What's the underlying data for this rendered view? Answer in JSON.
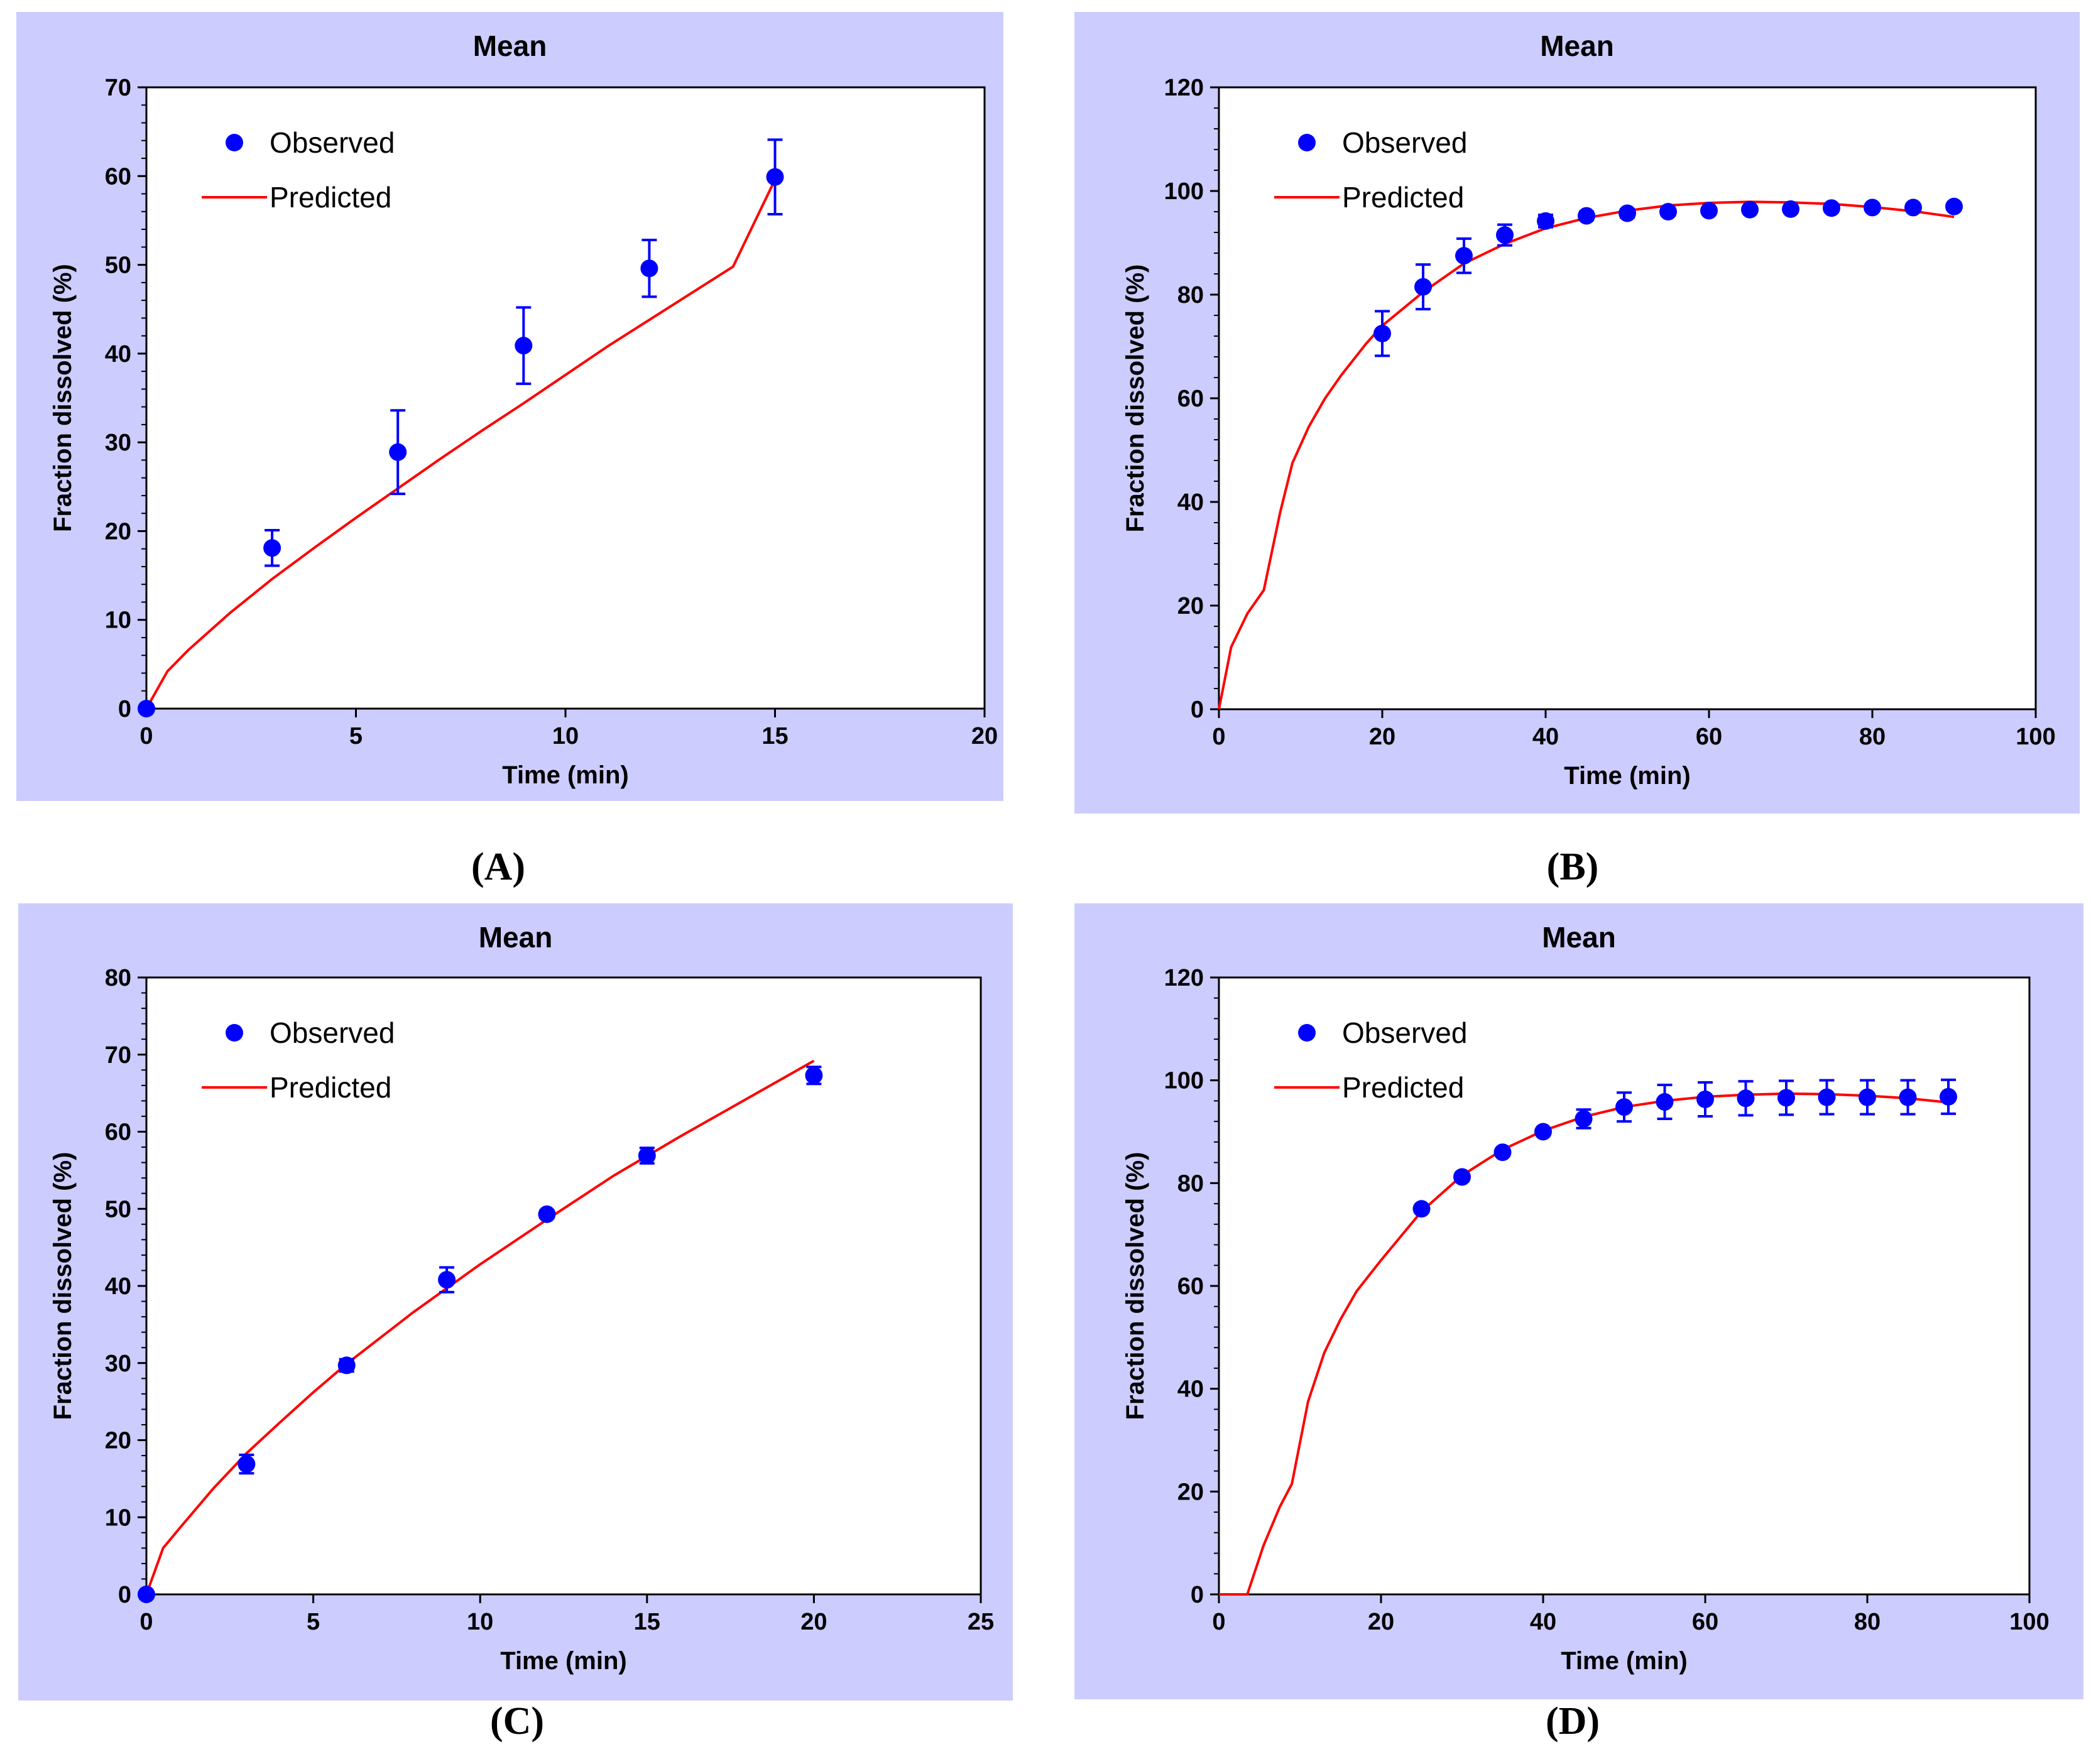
{
  "colors": {
    "panel_background": "#ccccff",
    "observed": "#0000ff",
    "predicted": "#ff0000"
  },
  "chart_data": [
    {
      "type": "scatter",
      "caption": "(A)",
      "title": "Mean",
      "xlabel": "Time (min)",
      "ylabel": "Fraction dissolved (%)",
      "xlim": [
        0,
        20
      ],
      "ylim": [
        0,
        70
      ],
      "xticks": [
        "0",
        "5",
        "10",
        "15",
        "20"
      ],
      "yticks": [
        "0",
        "10",
        "20",
        "30",
        "40",
        "50",
        "60",
        "70"
      ],
      "legend": {
        "placement": "top-left",
        "entries": [
          "Observed",
          "Predicted"
        ]
      },
      "series": [
        {
          "name": "Observed",
          "kind": "points",
          "x": [
            0,
            3,
            6,
            9,
            12,
            15
          ],
          "y": [
            0,
            18.1,
            28.9,
            40.9,
            49.6,
            59.9
          ],
          "err": [
            0,
            2.0,
            4.7,
            4.3,
            3.2,
            4.2
          ]
        },
        {
          "name": "Predicted",
          "kind": "line",
          "x": [
            0,
            0.5,
            1,
            2,
            3,
            4,
            5,
            6,
            7,
            8,
            9,
            10,
            11,
            12,
            13,
            14,
            15
          ],
          "y": [
            0,
            4.2,
            6.6,
            10.8,
            14.6,
            18.1,
            21.5,
            24.8,
            28.1,
            31.3,
            34.4,
            37.6,
            40.8,
            43.8,
            46.8,
            49.8,
            59.6
          ]
        }
      ]
    },
    {
      "type": "scatter",
      "caption": "(B)",
      "title": "Mean",
      "xlabel": "Time (min)",
      "ylabel": "Fraction dissolved (%)",
      "xlim": [
        0,
        100
      ],
      "ylim": [
        0,
        120
      ],
      "xticks": [
        "0",
        "20",
        "40",
        "60",
        "80",
        "100"
      ],
      "yticks": [
        "0",
        "20",
        "40",
        "60",
        "80",
        "100",
        "120"
      ],
      "legend": {
        "placement": "top-left",
        "entries": [
          "Observed",
          "Predicted"
        ]
      },
      "series": [
        {
          "name": "Observed",
          "kind": "points",
          "x": [
            20,
            25,
            30,
            35,
            40,
            45,
            50,
            55,
            60,
            65,
            70,
            75,
            80,
            85,
            90
          ],
          "y": [
            72.5,
            81.5,
            87.5,
            91.5,
            94.2,
            95.2,
            95.7,
            96.0,
            96.2,
            96.4,
            96.5,
            96.7,
            96.8,
            96.8,
            97.0
          ],
          "err": [
            4.3,
            4.3,
            3.3,
            2.0,
            1.2,
            0.8,
            0.8,
            0.7,
            0.6,
            0.5,
            0.5,
            0.5,
            0.5,
            0.5,
            0.5
          ]
        },
        {
          "name": "Predicted",
          "kind": "line",
          "x": [
            0,
            1.5,
            3.5,
            5.5,
            7.5,
            9,
            11,
            13,
            15,
            18,
            20,
            25,
            30,
            35,
            40,
            45,
            50,
            55,
            60,
            65,
            70,
            75,
            80,
            85,
            90
          ],
          "y": [
            0,
            12,
            18.5,
            23,
            38,
            47.5,
            54.5,
            60,
            64.5,
            70.5,
            74,
            80.5,
            86,
            89.8,
            92.8,
            94.8,
            96.2,
            97.2,
            97.7,
            97.9,
            97.8,
            97.5,
            96.9,
            96.1,
            95.0
          ]
        }
      ]
    },
    {
      "type": "scatter",
      "caption": "(C)",
      "title": "Mean",
      "xlabel": "Time (min)",
      "ylabel": "Fraction dissolved (%)",
      "xlim": [
        0,
        25
      ],
      "ylim": [
        0,
        80
      ],
      "xticks": [
        "0",
        "5",
        "10",
        "15",
        "20",
        "25"
      ],
      "yticks": [
        "0",
        "10",
        "20",
        "30",
        "40",
        "50",
        "60",
        "70",
        "80"
      ],
      "legend": {
        "placement": "top-left",
        "entries": [
          "Observed",
          "Predicted"
        ]
      },
      "series": [
        {
          "name": "Observed",
          "kind": "points",
          "x": [
            0,
            3,
            6,
            9,
            12,
            15,
            20
          ],
          "y": [
            0,
            16.9,
            29.7,
            40.8,
            49.3,
            56.9,
            67.3
          ],
          "err": [
            0,
            1.2,
            0.8,
            1.6,
            0.5,
            1.0,
            1.1
          ]
        },
        {
          "name": "Predicted",
          "kind": "line",
          "x": [
            0,
            0.5,
            1,
            2,
            3,
            4,
            5,
            6,
            8,
            10,
            12,
            14,
            16,
            18,
            20
          ],
          "y": [
            0,
            6.0,
            8.6,
            13.7,
            18.3,
            22.3,
            26.2,
            29.9,
            36.6,
            42.8,
            48.6,
            54.3,
            59.4,
            64.3,
            69.2
          ]
        }
      ]
    },
    {
      "type": "scatter",
      "caption": "(D)",
      "title": "Mean",
      "xlabel": "Time (min)",
      "ylabel": "Fraction dissolved (%)",
      "xlim": [
        0,
        100
      ],
      "ylim": [
        0,
        120
      ],
      "xticks": [
        "0",
        "20",
        "40",
        "60",
        "80",
        "100"
      ],
      "yticks": [
        "0",
        "20",
        "40",
        "60",
        "80",
        "100",
        "120"
      ],
      "legend": {
        "placement": "top-left",
        "entries": [
          "Observed",
          "Predicted"
        ]
      },
      "series": [
        {
          "name": "Observed",
          "kind": "points",
          "x": [
            25,
            30,
            35,
            40,
            45,
            50,
            55,
            60,
            65,
            70,
            75,
            80,
            85,
            90
          ],
          "y": [
            75.0,
            81.2,
            86.0,
            90.0,
            92.5,
            94.8,
            95.8,
            96.3,
            96.5,
            96.6,
            96.7,
            96.7,
            96.7,
            96.8
          ],
          "err": [
            0.7,
            0.8,
            0.7,
            0.6,
            1.8,
            2.8,
            3.3,
            3.3,
            3.3,
            3.3,
            3.3,
            3.3,
            3.3,
            3.3
          ]
        },
        {
          "name": "Predicted",
          "kind": "line",
          "x": [
            0,
            3.5,
            5.5,
            7.5,
            9,
            11,
            13,
            15,
            17,
            20,
            25,
            30,
            35,
            40,
            45,
            50,
            55,
            60,
            65,
            70,
            75,
            80,
            85,
            90
          ],
          "y": [
            0,
            0,
            9.5,
            17,
            21.5,
            37.5,
            47,
            53.5,
            59,
            65,
            74.5,
            81.5,
            86.5,
            90.2,
            92.9,
            94.8,
            96.0,
            96.8,
            97.2,
            97.4,
            97.3,
            97.0,
            96.5,
            95.7
          ]
        }
      ]
    }
  ]
}
